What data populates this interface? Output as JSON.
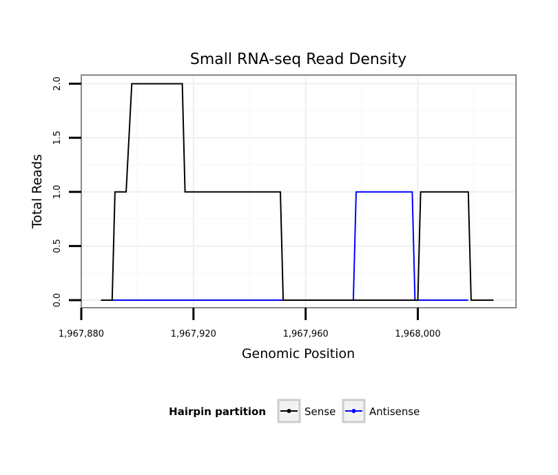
{
  "chart_data": {
    "type": "line",
    "title": "Small RNA-seq Read Density",
    "xlabel": "Genomic Position",
    "ylabel": "Total Reads",
    "xlim": [
      1967880,
      1968035
    ],
    "ylim": [
      -0.07,
      2.08
    ],
    "x_ticks": [
      1967880,
      1967920,
      1967960,
      1968000
    ],
    "x_tick_labels": [
      "1,967,880",
      "1,967,920",
      "1,967,960",
      "1,968,000"
    ],
    "y_ticks": [
      0.0,
      0.5,
      1.0,
      1.5,
      2.0
    ],
    "y_tick_labels": [
      "0.0",
      "0.5",
      "1.0",
      "1.5",
      "2.0"
    ],
    "grid": true,
    "legend": {
      "title": "Hairpin partition",
      "placement": "bottom",
      "entries": [
        "Sense",
        "Antisense"
      ]
    },
    "series": [
      {
        "name": "Sense",
        "color": "#000000",
        "x": [
          1967887,
          1967891,
          1967892,
          1967896,
          1967898,
          1967916,
          1967917,
          1967951,
          1967952,
          1968000,
          1968001,
          1968018,
          1968019,
          1968027
        ],
        "y": [
          0,
          0,
          1,
          1,
          2,
          2,
          1,
          1,
          0,
          0,
          1,
          1,
          0,
          0
        ]
      },
      {
        "name": "Antisense",
        "color": "#0000ff",
        "x": [
          1967891,
          1967952,
          1967977,
          1967978,
          1967998,
          1967999,
          1968018
        ],
        "y": [
          0,
          0,
          0,
          1,
          1,
          0,
          0
        ]
      }
    ]
  }
}
